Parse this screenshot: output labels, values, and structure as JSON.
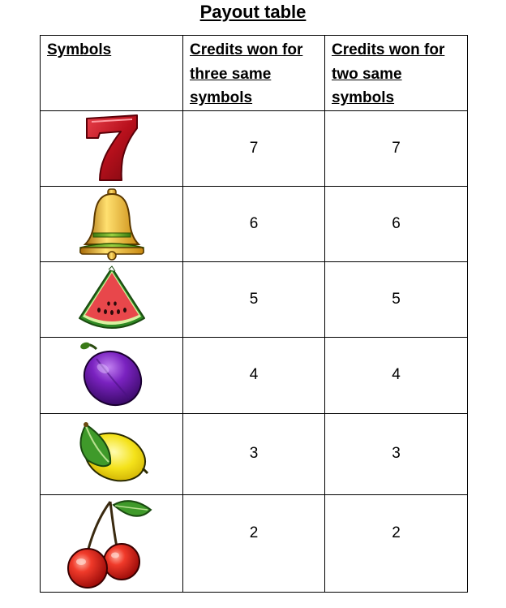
{
  "title": "Payout table",
  "headers": [
    "Symbols",
    "Credits won for three same symbols",
    "Credits won for two same symbols"
  ],
  "rows": [
    {
      "symbol": "seven-icon",
      "three": "7",
      "two": "7"
    },
    {
      "symbol": "bell-icon",
      "three": "6",
      "two": "6"
    },
    {
      "symbol": "watermelon-icon",
      "three": "5",
      "two": "5"
    },
    {
      "symbol": "plum-icon",
      "three": "4",
      "two": "4"
    },
    {
      "symbol": "lemon-icon",
      "three": "3",
      "two": "3"
    },
    {
      "symbol": "cherry-icon",
      "three": "2",
      "two": "2"
    }
  ],
  "colors": {
    "seven": "#c01824",
    "bell": "#e8b21c",
    "watermelon": "#e8474b",
    "plum": "#6a1aa8",
    "lemon": "#f4e21a",
    "cherry": "#e02a20",
    "leaf": "#3f9a2a"
  }
}
